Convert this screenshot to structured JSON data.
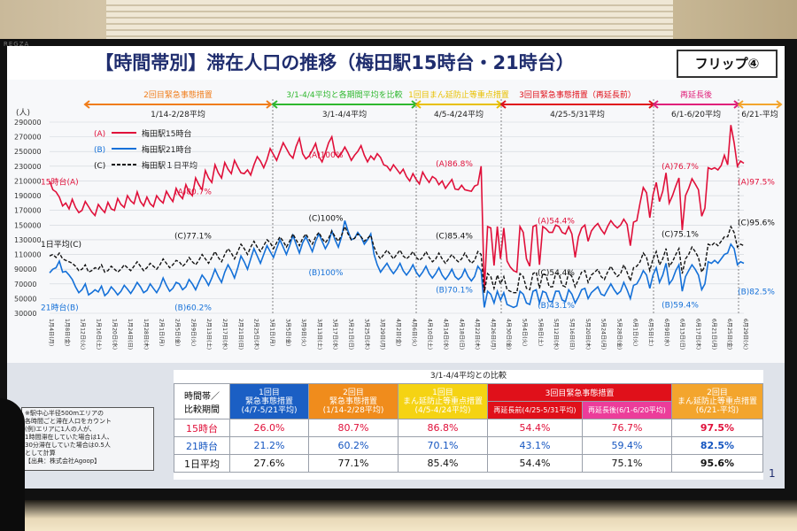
{
  "header": {
    "title": "【時間帯別】滞在人口の推移（梅田駅15時台・21時台）",
    "flip": "フリップ④"
  },
  "chart_data": {
    "type": "line",
    "ylabel": "(人)",
    "ylim": [
      30000,
      290000
    ],
    "yticks": [
      "290000",
      "270000",
      "250000",
      "230000",
      "210000",
      "190000",
      "170000",
      "150000",
      "130000",
      "110000",
      "90000",
      "70000",
      "50000",
      "30000"
    ],
    "ytick_values": [
      290000,
      270000,
      250000,
      230000,
      210000,
      190000,
      170000,
      150000,
      130000,
      110000,
      90000,
      70000,
      50000,
      30000
    ],
    "xticks": [
      "1月4日(月)",
      "1月8日(金)",
      "1月12日(火)",
      "1月16日(土)",
      "1月20日(水)",
      "1月24日(日)",
      "1月28日(木)",
      "2月1日(月)",
      "2月5日(金)",
      "2月9日(火)",
      "2月13日(土)",
      "2月17日(水)",
      "2月21日(日)",
      "2月25日(木)",
      "3月1日(月)",
      "3月5日(金)",
      "3月9日(火)",
      "3月13日(土)",
      "3月17日(水)",
      "3月21日(日)",
      "3月25日(木)",
      "3月29日(月)",
      "4月2日(金)",
      "4月6日(火)",
      "4月10日(土)",
      "4月14日(水)",
      "4月18日(日)",
      "4月22日(木)",
      "4月26日(月)",
      "4月30日(金)",
      "5月4日(火)",
      "5月8日(土)",
      "5月12日(水)",
      "5月16日(日)",
      "5月20日(木)",
      "5月24日(月)",
      "5月28日(金)",
      "6月1日(火)",
      "6月5日(土)",
      "6月9日(水)",
      "6月13日(日)",
      "6月17日(木)",
      "6月21日(月)",
      "6月25日(金)",
      "6月29日(火)"
    ],
    "periods": [
      {
        "label": "2回目緊急事態措置",
        "sub": "1/14-2/28平均",
        "color": "#f07d1a"
      },
      {
        "label": "3/1-4/4平均と各期間平均を比較",
        "sub": "3/1-4/4平均",
        "color": "#2fb82f"
      },
      {
        "label": "1回目まん延防止等重点措置",
        "sub": "4/5-4/24平均",
        "color": "#e8c000"
      },
      {
        "label": "3回目緊急事態措置（再延長前）",
        "sub": "4/25-5/31平均",
        "color": "#e0101a"
      },
      {
        "label": "再延長後",
        "sub": "6/1-6/20平均",
        "color": "#e0207a"
      },
      {
        "label": "",
        "sub": "6/21-平均",
        "color": "#f3a52d"
      }
    ],
    "legend": [
      {
        "key": "(A)",
        "name": "梅田駅15時台",
        "color": "#e0103a"
      },
      {
        "key": "(B)",
        "name": "梅田駅21時台",
        "color": "#1470d8"
      },
      {
        "key": "(C)",
        "name": "梅田駅１日平均",
        "color": "#111111"
      }
    ],
    "side_labels": {
      "a": "15時台(A)",
      "c": "1日平均(C)",
      "b": "21時台(B)"
    },
    "annotations": {
      "a": [
        "(A)80.7%",
        "(A)100%",
        "(A)86.8%",
        "(A)54.4%",
        "(A)76.7%",
        "(A)97.5%"
      ],
      "c": [
        "(C)77.1%",
        "(C)100%",
        "(C)85.4%",
        "(C)54.4%",
        "(C)75.1%",
        "(C)95.6%"
      ],
      "b": [
        "(B)60.2%",
        "(B)100%",
        "(B)70.1%",
        "(B)43.1%",
        "(B)59.4%",
        "(B)82.5%"
      ]
    },
    "series": [
      {
        "name": "梅田駅15時台",
        "key": "A",
        "color": "#e0103a",
        "values": [
          210000,
          198000,
          195000,
          188000,
          176000,
          180000,
          172000,
          185000,
          174000,
          167000,
          170000,
          182000,
          175000,
          168000,
          163000,
          178000,
          172000,
          167000,
          181000,
          172000,
          170000,
          186000,
          178000,
          174000,
          190000,
          183000,
          179000,
          195000,
          182000,
          176000,
          188000,
          179000,
          175000,
          190000,
          184000,
          180000,
          196000,
          188000,
          182000,
          200000,
          191000,
          186000,
          205000,
          195000,
          190000,
          214000,
          205000,
          198000,
          224000,
          214000,
          208000,
          232000,
          221000,
          214000,
          235000,
          226000,
          220000,
          238000,
          229000,
          221000,
          220000,
          225000,
          218000,
          232000,
          243000,
          237000,
          228000,
          239000,
          254000,
          246000,
          238000,
          250000,
          262000,
          254000,
          246000,
          241000,
          257000,
          268000,
          247000,
          240000,
          244000,
          252000,
          261000,
          243000,
          236000,
          248000,
          262000,
          270000,
          247000,
          242000,
          248000,
          256000,
          248000,
          238000,
          245000,
          250000,
          258000,
          245000,
          236000,
          244000,
          239000,
          247000,
          242000,
          232000,
          230000,
          224000,
          232000,
          226000,
          220000,
          226000,
          216000,
          210000,
          220000,
          212000,
          206000,
          222000,
          214000,
          208000,
          216000,
          213000,
          205000,
          210000,
          200000,
          206000,
          212000,
          199000,
          198000,
          204000,
          198000,
          197000,
          196000,
          203000,
          205000,
          230000,
          60000,
          148000,
          146000,
          95000,
          148000,
          104000,
          146000,
          101000,
          93000,
          88000,
          86000,
          148000,
          140000,
          104000,
          94000,
          148000,
          150000,
          96000,
          148000,
          145000,
          140000,
          140000,
          150000,
          148000,
          140000,
          138000,
          148000,
          138000,
          106000,
          134000,
          146000,
          150000,
          128000,
          142000,
          148000,
          152000,
          144000,
          138000,
          148000,
          156000,
          150000,
          146000,
          150000,
          158000,
          151000,
          122000,
          154000,
          156000,
          180000,
          201000,
          194000,
          160000,
          191000,
          208000,
          182000,
          196000,
          221000,
          180000,
          190000,
          203000,
          214000,
          143000,
          190000,
          200000,
          213000,
          206000,
          198000,
          162000,
          173000,
          228000,
          226000,
          228000,
          225000,
          231000,
          245000,
          232000,
          286000,
          262000,
          230000,
          237000,
          234000
        ]
      },
      {
        "name": "梅田駅21時台",
        "key": "B",
        "color": "#1470d8",
        "values": [
          85000,
          90000,
          92000,
          101000,
          86000,
          87000,
          82000,
          76000,
          66000,
          58000,
          62000,
          70000,
          55000,
          58000,
          62000,
          59000,
          67000,
          54000,
          58000,
          66000,
          61000,
          55000,
          60000,
          68000,
          63000,
          57000,
          64000,
          72000,
          66000,
          58000,
          61000,
          70000,
          64000,
          58000,
          66000,
          78000,
          68000,
          60000,
          64000,
          72000,
          70000,
          62000,
          66000,
          76000,
          70000,
          62000,
          72000,
          82000,
          76000,
          68000,
          78000,
          90000,
          80000,
          72000,
          86000,
          96000,
          88000,
          78000,
          92000,
          108000,
          100000,
          90000,
          104000,
          118000,
          108000,
          98000,
          110000,
          122000,
          114000,
          106000,
          118000,
          130000,
          120000,
          110000,
          122000,
          136000,
          124000,
          112000,
          126000,
          134000,
          124000,
          114000,
          128000,
          138000,
          128000,
          118000,
          126000,
          142000,
          130000,
          120000,
          134000,
          156000,
          142000,
          130000,
          132000,
          140000,
          134000,
          124000,
          130000,
          138000,
          110000,
          96000,
          86000,
          92000,
          98000,
          90000,
          84000,
          90000,
          98000,
          88000,
          82000,
          88000,
          96000,
          86000,
          80000,
          86000,
          94000,
          84000,
          78000,
          84000,
          92000,
          82000,
          76000,
          82000,
          90000,
          80000,
          76000,
          80000,
          90000,
          80000,
          74000,
          80000,
          94000,
          88000,
          38000,
          60000,
          56000,
          44000,
          60000,
          48000,
          58000,
          42000,
          40000,
          38000,
          40000,
          60000,
          56000,
          44000,
          42000,
          60000,
          62000,
          44000,
          60000,
          58000,
          46000,
          46000,
          60000,
          60000,
          48000,
          46000,
          62000,
          56000,
          44000,
          52000,
          62000,
          64000,
          50000,
          58000,
          62000,
          66000,
          56000,
          54000,
          62000,
          70000,
          62000,
          56000,
          60000,
          72000,
          62000,
          50000,
          68000,
          70000,
          78000,
          88000,
          82000,
          64000,
          82000,
          92000,
          72000,
          82000,
          98000,
          70000,
          76000,
          88000,
          96000,
          60000,
          80000,
          88000,
          96000,
          90000,
          82000,
          62000,
          70000,
          100000,
          98000,
          102000,
          98000,
          104000,
          110000,
          112000,
          124000,
          118000,
          96000,
          100000,
          98000
        ]
      },
      {
        "name": "梅田駅１日平均",
        "key": "C",
        "color": "#111111",
        "values": [
          108000,
          110000,
          106000,
          112000,
          104000,
          102000,
          100000,
          98000,
          94000,
          88000,
          90000,
          96000,
          86000,
          88000,
          92000,
          90000,
          96000,
          86000,
          88000,
          94000,
          90000,
          86000,
          90000,
          96000,
          92000,
          88000,
          94000,
          100000,
          94000,
          88000,
          92000,
          98000,
          94000,
          90000,
          96000,
          104000,
          98000,
          92000,
          96000,
          102000,
          100000,
          94000,
          98000,
          106000,
          100000,
          96000,
          102000,
          110000,
          104000,
          98000,
          106000,
          114000,
          106000,
          100000,
          110000,
          118000,
          112000,
          104000,
          114000,
          124000,
          118000,
          110000,
          120000,
          128000,
          120000,
          114000,
          122000,
          130000,
          126000,
          118000,
          126000,
          134000,
          128000,
          120000,
          128000,
          138000,
          130000,
          122000,
          132000,
          138000,
          130000,
          124000,
          134000,
          140000,
          132000,
          126000,
          132000,
          142000,
          134000,
          128000,
          136000,
          148000,
          138000,
          130000,
          132000,
          138000,
          134000,
          128000,
          132000,
          136000,
          120000,
          110000,
          104000,
          110000,
          116000,
          110000,
          104000,
          110000,
          116000,
          108000,
          104000,
          108000,
          114000,
          106000,
          102000,
          106000,
          114000,
          106000,
          100000,
          104000,
          112000,
          104000,
          98000,
          104000,
          110000,
          104000,
          100000,
          104000,
          112000,
          104000,
          98000,
          102000,
          114000,
          110000,
          58000,
          84000,
          80000,
          64000,
          82000,
          70000,
          80000,
          62000,
          60000,
          58000,
          58000,
          84000,
          80000,
          64000,
          62000,
          84000,
          86000,
          64000,
          84000,
          82000,
          66000,
          66000,
          84000,
          84000,
          68000,
          66000,
          86000,
          80000,
          66000,
          76000,
          86000,
          88000,
          72000,
          82000,
          86000,
          90000,
          80000,
          76000,
          86000,
          94000,
          86000,
          80000,
          84000,
          96000,
          86000,
          74000,
          92000,
          94000,
          100000,
          112000,
          106000,
          88000,
          104000,
          114000,
          96000,
          104000,
          118000,
          94000,
          100000,
          110000,
          118000,
          84000,
          104000,
          110000,
          120000,
          114000,
          106000,
          86000,
          94000,
          124000,
          122000,
          126000,
          122000,
          128000,
          134000,
          134000,
          148000,
          140000,
          120000,
          124000,
          122000
        ]
      }
    ]
  },
  "comparison": {
    "caption": "3/1-4/4平均との比較",
    "corner": [
      "時間帯／",
      "比較期間"
    ],
    "headers": [
      {
        "l1": "1回目",
        "l2": "緊急事態措置",
        "l3": "(4/7-5/21平均)"
      },
      {
        "l1": "2回目",
        "l2": "緊急事態措置",
        "l3": "(1/14-2/28平均)"
      },
      {
        "l1": "1回目",
        "l2": "まん延防止等重点措置",
        "l3": "(4/5-4/24平均)"
      },
      {
        "l1": "3回目緊急事態措置",
        "sub1": "再延長前(4/25-5/31平均)",
        "sub2": "再延長後(6/1-6/20平均)"
      },
      {
        "l1": "2回目",
        "l2": "まん延防止等重点措置",
        "l3": "(6/21-平均)"
      }
    ],
    "rows": [
      {
        "label": "15時台",
        "values": [
          "26.0%",
          "80.7%",
          "86.8%",
          "54.4%",
          "76.7%",
          "97.5%"
        ]
      },
      {
        "label": "21時台",
        "values": [
          "21.2%",
          "60.2%",
          "70.1%",
          "43.1%",
          "59.4%",
          "82.5%"
        ]
      },
      {
        "label": "1日平均",
        "values": [
          "27.6%",
          "77.1%",
          "85.4%",
          "54.4%",
          "75.1%",
          "95.6%"
        ]
      }
    ]
  },
  "note": {
    "lines": [
      "※駅中心半径500mエリアの",
      "各時間ごと滞在人口をカウント",
      "(例)エリアに1人の人が、",
      "1時間滞在していた場合は1人、",
      "30分滞在していた場合は0.5人",
      "として計算"
    ],
    "source": "【出典：株式会社Agoop】"
  },
  "page_number": "1",
  "bezel_brand": "REGZA"
}
